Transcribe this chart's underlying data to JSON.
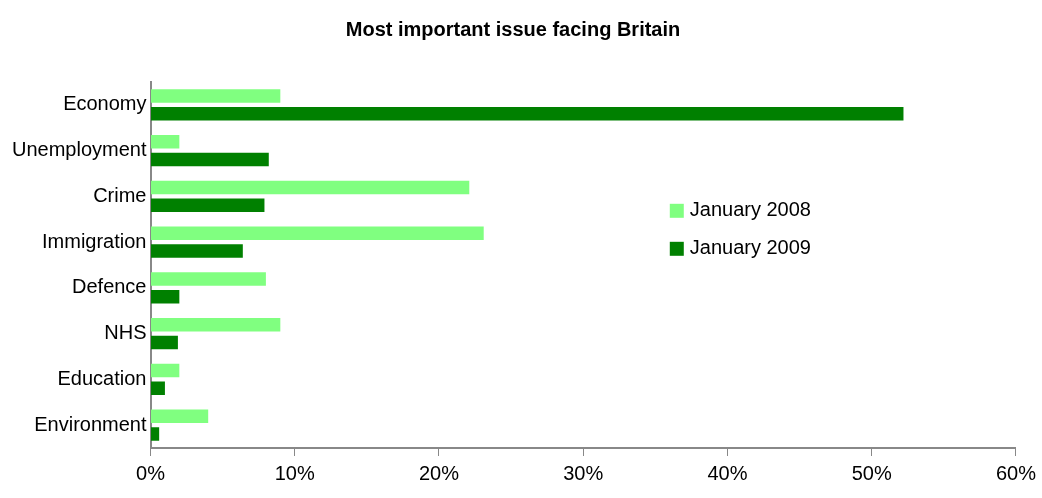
{
  "chart_data": {
    "type": "bar",
    "orientation": "horizontal",
    "title": "Most important issue facing Britain",
    "categories": [
      "Economy",
      "Unemployment",
      "Crime",
      "Immigration",
      "Defence",
      "NHS",
      "Education",
      "Environment"
    ],
    "series": [
      {
        "name": "January 2008",
        "color": "#80ff80",
        "values": [
          9.0,
          2.0,
          22.1,
          23.1,
          8.0,
          9.0,
          2.0,
          4.0
        ]
      },
      {
        "name": "January 2009",
        "color": "#008000",
        "values": [
          52.2,
          8.2,
          7.9,
          6.4,
          2.0,
          1.9,
          1.0,
          0.6
        ]
      }
    ],
    "xlim": [
      0,
      60
    ],
    "xticks": [
      {
        "value": 0,
        "label": "0%"
      },
      {
        "value": 10,
        "label": "10%"
      },
      {
        "value": 20,
        "label": "20%"
      },
      {
        "value": 30,
        "label": "30%"
      },
      {
        "value": 40,
        "label": "40%"
      },
      {
        "value": 50,
        "label": "50%"
      },
      {
        "value": 60,
        "label": "60%"
      }
    ],
    "grid": false,
    "legend": "right"
  }
}
